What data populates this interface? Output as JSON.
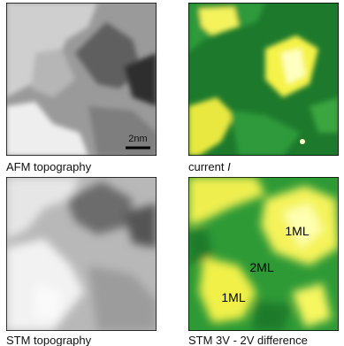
{
  "panels": [
    {
      "caption": "AFM topography",
      "scale_bar": "2nm"
    },
    {
      "caption": "current",
      "caption_var": "I"
    },
    {
      "caption": "STM topography"
    },
    {
      "caption": "STM 3V - 2V difference",
      "labels": [
        "1ML",
        "2ML",
        "1ML"
      ]
    }
  ]
}
